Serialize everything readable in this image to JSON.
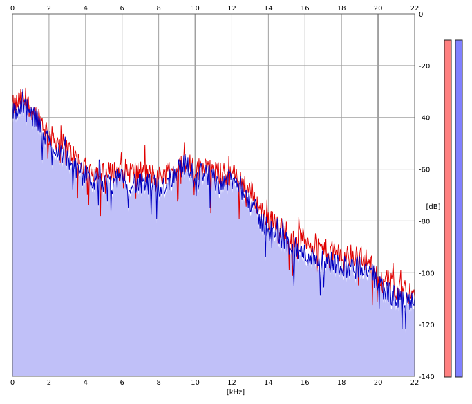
{
  "chart_data": {
    "type": "line",
    "title": "",
    "xlabel": "[kHz]",
    "ylabel": "[dB]",
    "xlim": [
      0,
      22
    ],
    "ylim": [
      -140,
      0
    ],
    "x_ticks": [
      "0",
      "2",
      "4",
      "6",
      "8",
      "10",
      "12",
      "14",
      "16",
      "18",
      "20",
      "22"
    ],
    "y_ticks": [
      "0",
      "-20",
      "-40",
      "-60",
      "-80",
      "-100",
      "-120",
      "-140"
    ],
    "grid": true,
    "legend": "none",
    "colors": {
      "left_channel": "#e00000",
      "right_channel": "#0000c0",
      "fill": "#c0c0f8",
      "meter_left": "#ff8080",
      "meter_right": "#8080ff",
      "grid": "#a0a0a0"
    },
    "series": [
      {
        "color": "red",
        "x": [
          0,
          0.5,
          1,
          1.5,
          2,
          2.5,
          3,
          3.5,
          4,
          4.5,
          5,
          5.5,
          6,
          6.5,
          7,
          7.5,
          8,
          8.5,
          9,
          9.5,
          10,
          10.5,
          11,
          11.5,
          12,
          12.5,
          13,
          13.5,
          14,
          14.5,
          15,
          15.5,
          16,
          16.5,
          17,
          17.5,
          18,
          18.5,
          19,
          19.5,
          20,
          20.5,
          21,
          21.5,
          22
        ],
        "values": [
          -36,
          -33,
          -36,
          -40,
          -47,
          -49,
          -52,
          -56,
          -60,
          -61,
          -62,
          -61,
          -60,
          -61,
          -61,
          -62,
          -63,
          -61,
          -60,
          -56,
          -61,
          -58,
          -61,
          -62,
          -62,
          -64,
          -68,
          -75,
          -79,
          -82,
          -84,
          -86,
          -87,
          -89,
          -91,
          -92,
          -93,
          -94,
          -93,
          -96,
          -101,
          -103,
          -106,
          -106,
          -110
        ]
      },
      {
        "color": "blue",
        "x": [
          0,
          0.5,
          1,
          1.5,
          2,
          2.5,
          3,
          3.5,
          4,
          4.5,
          5,
          5.5,
          6,
          6.5,
          7,
          7.5,
          8,
          8.5,
          9,
          9.5,
          10,
          10.5,
          11,
          11.5,
          12,
          12.5,
          13,
          13.5,
          14,
          14.5,
          15,
          15.5,
          16,
          16.5,
          17,
          17.5,
          18,
          18.5,
          19,
          19.5,
          20,
          20.5,
          21,
          21.5,
          22
        ],
        "values": [
          -38,
          -36,
          -39,
          -43,
          -50,
          -52,
          -56,
          -60,
          -63,
          -64,
          -66,
          -65,
          -64,
          -65,
          -66,
          -66,
          -67,
          -65,
          -60,
          -58,
          -64,
          -60,
          -65,
          -65,
          -64,
          -67,
          -72,
          -79,
          -83,
          -86,
          -88,
          -91,
          -93,
          -94,
          -95,
          -96,
          -97,
          -98,
          -97,
          -99,
          -104,
          -107,
          -110,
          -110,
          -113
        ]
      }
    ],
    "meters": [
      {
        "color": "#ff8080",
        "value": 0
      },
      {
        "color": "#8080ff",
        "value": 0
      }
    ]
  }
}
